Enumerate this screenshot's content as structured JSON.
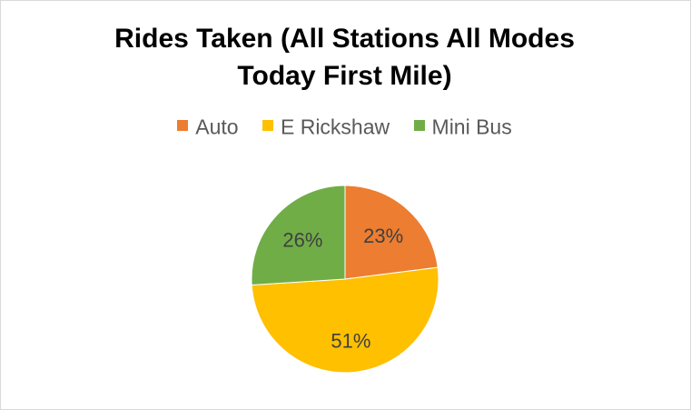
{
  "chart_data": {
    "type": "pie",
    "title_line1": "Rides Taken (All Stations All Modes",
    "title_line2": "Today First Mile)",
    "categories": [
      "Auto",
      "E Rickshaw",
      "Mini Bus"
    ],
    "values": [
      23,
      51,
      26
    ],
    "labels": [
      "23%",
      "51%",
      "26%"
    ],
    "colors": [
      "#ED7D31",
      "#FFC000",
      "#70AD47"
    ],
    "legend_position": "top",
    "start_angle_deg": 0,
    "direction": "clockwise"
  }
}
